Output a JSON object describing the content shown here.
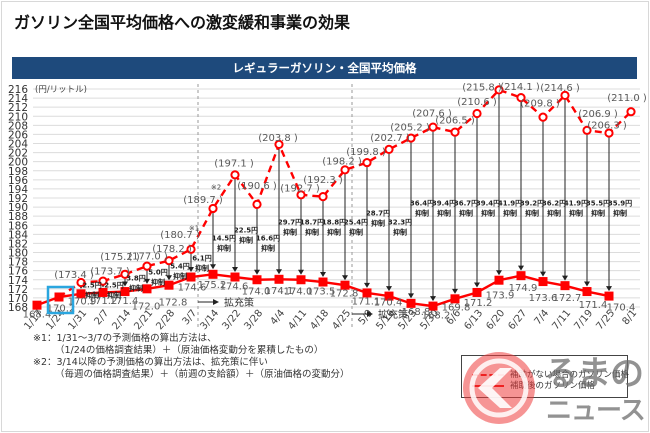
{
  "page": {
    "title": "ガソリン全国平均価格への激変緩和事業の効果"
  },
  "chart_header": "レギュラーガソリン・全国平均価格",
  "chart_data": {
    "type": "line",
    "title": "レギュラーガソリン・全国平均価格",
    "xlabel": "",
    "ylabel": "(円/リットル)",
    "ylim": [
      168,
      216
    ],
    "ytick_step": 2,
    "grid": true,
    "categories": [
      "1/17",
      "1/24",
      "1/31",
      "2/7",
      "2/14",
      "2/21",
      "2/28",
      "3/7",
      "3/14",
      "3/22",
      "3/28",
      "4/4",
      "4/11",
      "4/18",
      "4/25",
      "5/9",
      "5/16",
      "5/23",
      "5/30",
      "6/6",
      "6/13",
      "6/20",
      "6/27",
      "7/4",
      "7/11",
      "7/19",
      "7/25",
      "8/1"
    ],
    "series": [
      {
        "name": "補助がない場合のガソリン価格",
        "style": "dashed",
        "color": "#ff0000",
        "values": [
          null,
          170.2,
          173.4,
          173.7,
          175.2,
          177.0,
          178.2,
          180.7,
          189.7,
          197.1,
          190.6,
          203.8,
          192.7,
          192.3,
          198.2,
          199.8,
          202.7,
          205.2,
          207.6,
          206.5,
          210.6,
          215.8,
          214.1,
          209.8,
          214.6,
          206.9,
          206.3,
          211.0
        ]
      },
      {
        "name": "補助後のガソリン価格",
        "style": "solid",
        "color": "#ff0000",
        "values": [
          168.4,
          170.2,
          170.9,
          171.2,
          171.4,
          172.0,
          172.8,
          174.6,
          175.2,
          174.6,
          174.0,
          174.1,
          174.0,
          173.5,
          172.8,
          171.1,
          170.4,
          168.8,
          168.2,
          169.8,
          171.2,
          173.9,
          174.9,
          173.6,
          172.7,
          171.4,
          170.4,
          null
        ]
      }
    ],
    "suppression": {
      "unit": "円",
      "suffix": "抑制",
      "values": [
        null,
        null,
        2.5,
        2.5,
        3.8,
        5.0,
        5.4,
        6.1,
        14.5,
        22.5,
        16.6,
        29.7,
        18.7,
        18.8,
        25.4,
        28.7,
        32.3,
        36.4,
        39.4,
        36.7,
        39.4,
        41.9,
        39.2,
        36.2,
        41.9,
        35.5,
        35.9,
        null
      ]
    },
    "annotations": [
      {
        "text": "※1",
        "category": "3/7"
      },
      {
        "text": "※2",
        "category": "3/14"
      }
    ],
    "policy_markers": [
      {
        "label": "拡充策",
        "after_category": "3/7"
      },
      {
        "label": "拡充策",
        "after_category": "4/25"
      }
    ],
    "highlight": {
      "category": "1/24",
      "color": "#2aa6df"
    },
    "legend": {
      "position": "bottom-right"
    }
  },
  "footnotes": [
    "※1：1/31～3/7の予測価格の算出方法は、",
    "（1/24の価格調査結果）＋（原油価格変動分を累積したもの）",
    "※2：3/14以降の予測価格の算出方法は、拡充策に伴い",
    "（毎週の価格調査結果）＋（前週の支給額）＋（原油価格の変動分）"
  ],
  "watermark": {
    "line1": "るまの",
    "line2": "ニュース"
  }
}
